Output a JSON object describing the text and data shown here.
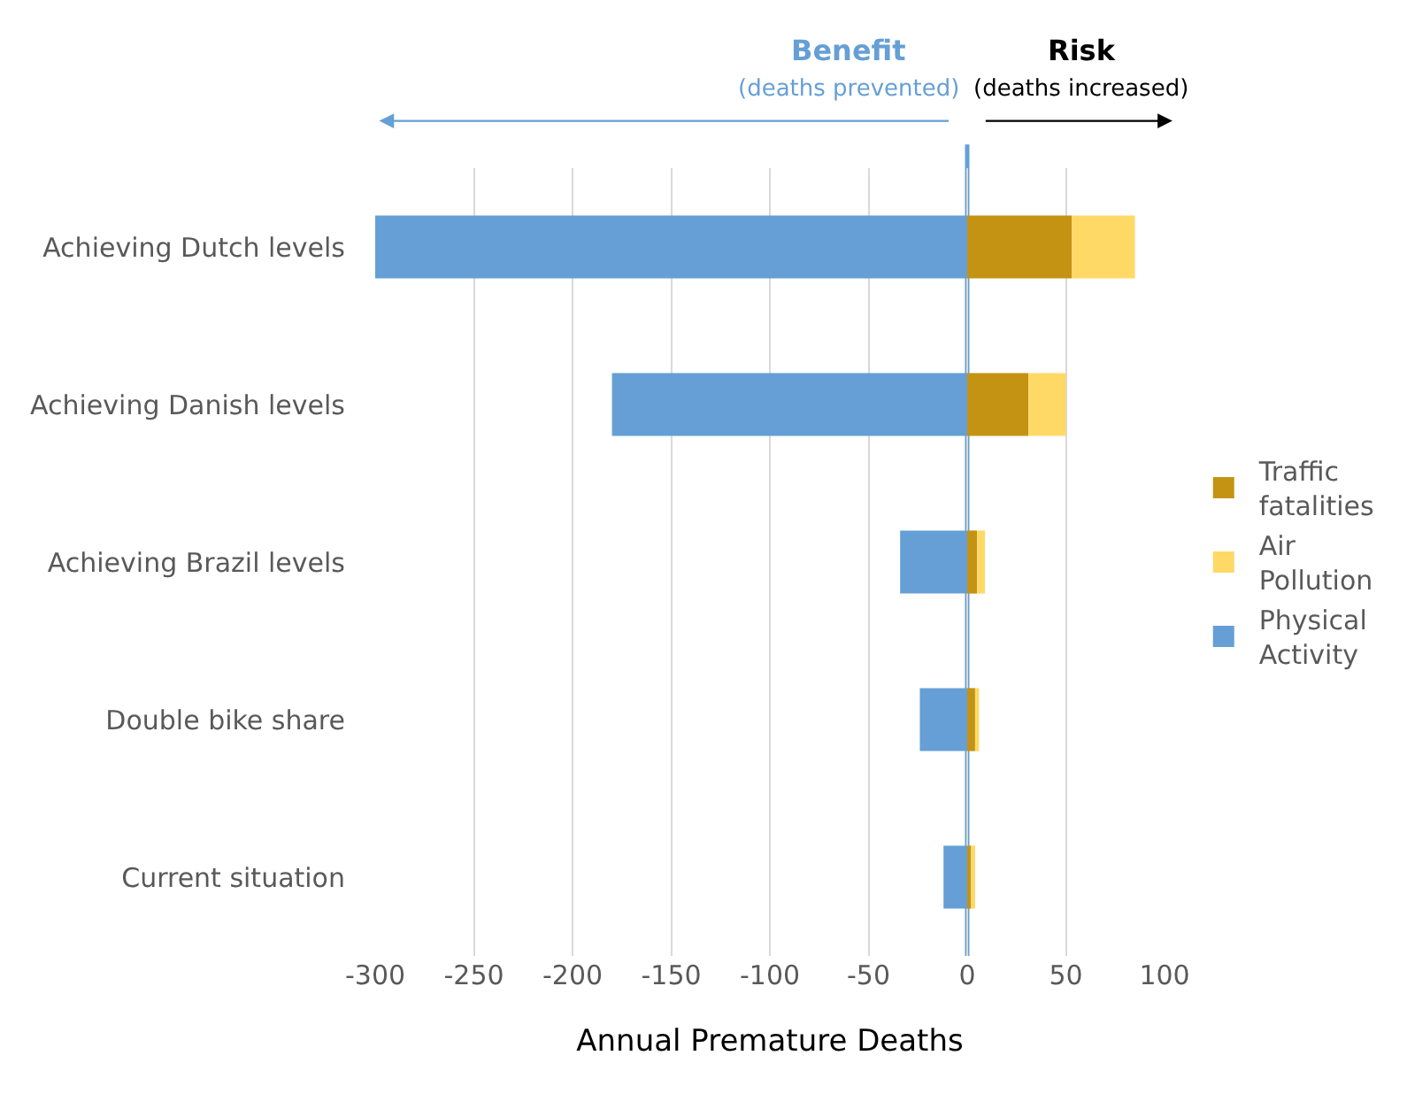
{
  "chart_data": {
    "type": "bar",
    "orientation": "horizontal",
    "stacked": true,
    "categories": [
      "Achieving Dutch levels",
      "Achieving Danish levels",
      "Achieving Brazil levels",
      "Double bike share",
      "Current situation"
    ],
    "series": [
      {
        "name": "Traffic fatalities",
        "color": "#c49314",
        "values": [
          53,
          31,
          5,
          4,
          2
        ]
      },
      {
        "name": "Air Pollution",
        "color": "#ffd966",
        "values": [
          32,
          19,
          4,
          2,
          2
        ]
      },
      {
        "name": "Physical Activity",
        "color": "#659fd5",
        "values": [
          -300,
          -180,
          -34,
          -24,
          -12
        ]
      }
    ],
    "xlim": [
      -300,
      100
    ],
    "xticks": [
      -300,
      -250,
      -200,
      -150,
      -100,
      -50,
      0,
      50,
      100
    ],
    "xlabel": "Annual Premature Deaths",
    "grid": "x",
    "legend": "right",
    "ref_lines": [
      {
        "axis": "x",
        "value": 0,
        "color": "#659fd5"
      }
    ],
    "annotations": [
      "Benefit",
      "(deaths prevented)",
      "Risk",
      "(deaths increased)"
    ]
  }
}
